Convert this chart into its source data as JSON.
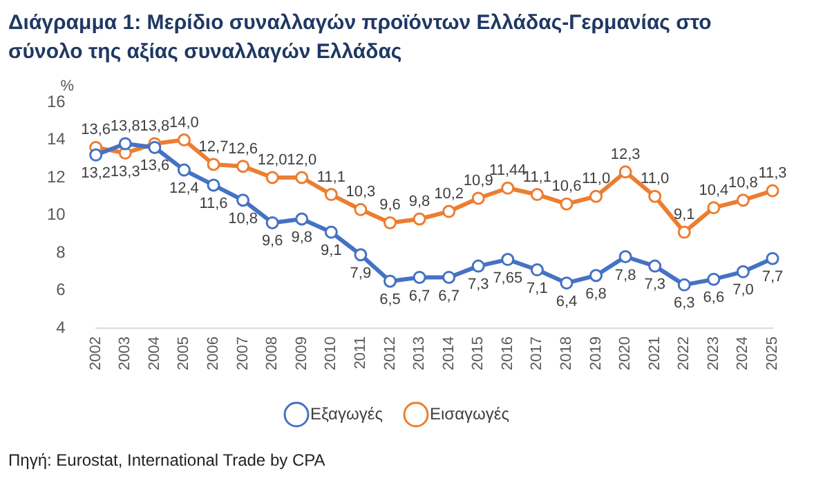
{
  "chart_data": {
    "type": "line",
    "title": "Διάγραμμα 1: Μερίδιο συναλλαγών προϊόντων Ελλάδας-Γερμανίας στο σύνολο της αξίας συναλλαγών Ελλάδας",
    "ylabel": "%",
    "categories": [
      "2002",
      "2003",
      "2004",
      "2005",
      "2006",
      "2007",
      "2008",
      "2009",
      "2010",
      "2011",
      "2012",
      "2013",
      "2014",
      "2015",
      "2016",
      "2017",
      "2018",
      "2019",
      "2020",
      "2021",
      "2022",
      "2023",
      "2024",
      "2025"
    ],
    "series": [
      {
        "name": "Εξαγωγές",
        "color": "#4472c4",
        "values": [
          13.2,
          13.8,
          13.6,
          12.4,
          11.6,
          10.8,
          9.6,
          9.8,
          9.1,
          7.9,
          6.5,
          6.7,
          6.7,
          7.3,
          7.65,
          7.1,
          6.4,
          6.8,
          7.8,
          7.3,
          6.3,
          6.6,
          7.0,
          7.7
        ],
        "value_labels": [
          "13,2",
          "13,8",
          "13,6",
          "12,4",
          "11,6",
          "10,8",
          "9,6",
          "9,8",
          "9,1",
          "7,9",
          "6,5",
          "6,7",
          "6,7",
          "7,3",
          "7,65",
          "7,1",
          "6,4",
          "6,8",
          "7,8",
          "7,3",
          "6,3",
          "6,6",
          "7,0",
          "7,7"
        ]
      },
      {
        "name": "Εισαγωγές",
        "color": "#ed7d31",
        "values": [
          13.6,
          13.3,
          13.8,
          14.0,
          12.7,
          12.6,
          12.0,
          12.0,
          11.1,
          10.3,
          9.6,
          9.8,
          10.2,
          10.9,
          11.44,
          11.1,
          10.6,
          11.0,
          12.3,
          11.0,
          9.1,
          10.4,
          10.8,
          11.3
        ],
        "value_labels": [
          "13,6",
          "13,3",
          "13,8",
          "14,0",
          "12,7",
          "12,6",
          "12,0",
          "12,0",
          "11,1",
          "10,3",
          "9,6",
          "9,8",
          "10,2",
          "10,9",
          "11,44",
          "11,1",
          "10,6",
          "11,0",
          "12,3",
          "11,0",
          "9,1",
          "10,4",
          "10,8",
          "11,3"
        ]
      }
    ],
    "ylim": [
      4,
      16
    ],
    "yticks": [
      4,
      6,
      8,
      10,
      12,
      14,
      16
    ],
    "grid": false,
    "legend": "bottom",
    "marker": "circle",
    "line_style": "solid",
    "annotations": [
      "Πηγή: Eurostat, International Trade by CPA"
    ]
  }
}
